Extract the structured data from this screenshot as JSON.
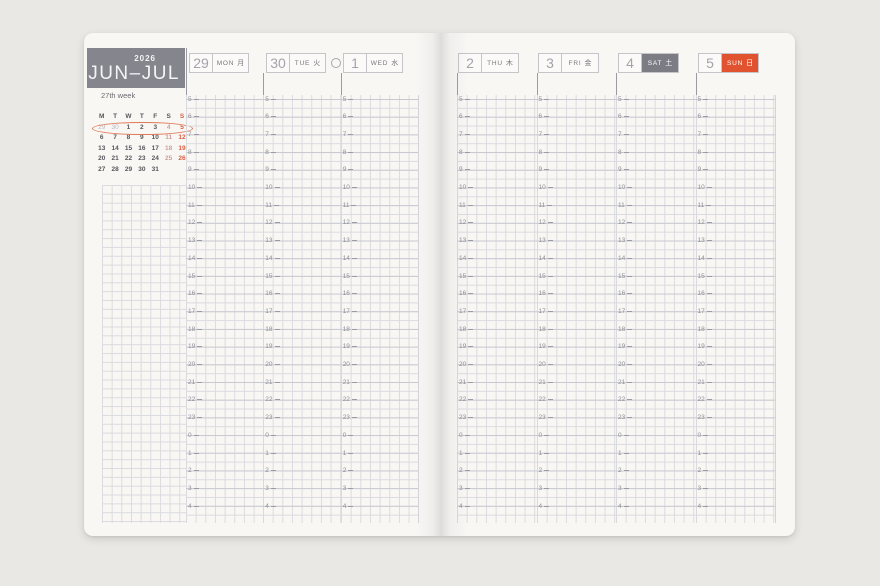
{
  "header": {
    "year": "2026",
    "months": "JUN–JUL",
    "week_label": "27th week"
  },
  "mini_calendar": {
    "day_headers": [
      {
        "d": "M",
        "t": "wd"
      },
      {
        "d": "T",
        "t": "wd"
      },
      {
        "d": "W",
        "t": "wd"
      },
      {
        "d": "T",
        "t": "wd"
      },
      {
        "d": "F",
        "t": "wd"
      },
      {
        "d": "S",
        "t": "wd"
      },
      {
        "d": "S",
        "t": "sun"
      }
    ],
    "rows": [
      [
        {
          "d": "29",
          "t": "out"
        },
        {
          "d": "30",
          "t": "out"
        },
        {
          "d": "1",
          "t": "wd"
        },
        {
          "d": "2",
          "t": "wd"
        },
        {
          "d": "3",
          "t": "wd"
        },
        {
          "d": "4",
          "t": "sat"
        },
        {
          "d": "5",
          "t": "sun"
        }
      ],
      [
        {
          "d": "6",
          "t": "wd"
        },
        {
          "d": "7",
          "t": "wd"
        },
        {
          "d": "8",
          "t": "wd"
        },
        {
          "d": "9",
          "t": "wd"
        },
        {
          "d": "10",
          "t": "wd"
        },
        {
          "d": "11",
          "t": "sat"
        },
        {
          "d": "12",
          "t": "sun"
        }
      ],
      [
        {
          "d": "13",
          "t": "wd"
        },
        {
          "d": "14",
          "t": "wd"
        },
        {
          "d": "15",
          "t": "wd"
        },
        {
          "d": "16",
          "t": "wd"
        },
        {
          "d": "17",
          "t": "wd"
        },
        {
          "d": "18",
          "t": "sat"
        },
        {
          "d": "19",
          "t": "sun"
        }
      ],
      [
        {
          "d": "20",
          "t": "wd"
        },
        {
          "d": "21",
          "t": "wd"
        },
        {
          "d": "22",
          "t": "wd"
        },
        {
          "d": "23",
          "t": "wd"
        },
        {
          "d": "24",
          "t": "wd"
        },
        {
          "d": "25",
          "t": "sat"
        },
        {
          "d": "26",
          "t": "sun"
        }
      ],
      [
        {
          "d": "27",
          "t": "wd"
        },
        {
          "d": "28",
          "t": "wd"
        },
        {
          "d": "29",
          "t": "wd"
        },
        {
          "d": "30",
          "t": "wd"
        },
        {
          "d": "31",
          "t": "wd"
        },
        {
          "d": "",
          "t": "wd"
        },
        {
          "d": "",
          "t": "wd"
        }
      ]
    ],
    "circled_row": 0
  },
  "days": [
    {
      "num": "29",
      "abbr": "MON",
      "kanji": "月",
      "style": "plain",
      "page": "left",
      "moon": false
    },
    {
      "num": "30",
      "abbr": "TUE",
      "kanji": "火",
      "style": "plain",
      "page": "left",
      "moon": true
    },
    {
      "num": "1",
      "abbr": "WED",
      "kanji": "水",
      "style": "plain",
      "page": "left",
      "moon": false
    },
    {
      "num": "2",
      "abbr": "THU",
      "kanji": "木",
      "style": "plain",
      "page": "right",
      "moon": false
    },
    {
      "num": "3",
      "abbr": "FRI",
      "kanji": "金",
      "style": "plain",
      "page": "right",
      "moon": false
    },
    {
      "num": "4",
      "abbr": "SAT",
      "kanji": "土",
      "style": "sat",
      "page": "right",
      "moon": false
    },
    {
      "num": "5",
      "abbr": "SUN",
      "kanji": "日",
      "style": "sun",
      "page": "right",
      "moon": false
    }
  ],
  "hours": [
    "5",
    "6",
    "7",
    "8",
    "9",
    "10",
    "11",
    "12",
    "13",
    "14",
    "15",
    "16",
    "17",
    "18",
    "19",
    "20",
    "21",
    "22",
    "23",
    "0",
    "1",
    "2",
    "3",
    "4"
  ],
  "moon_icon": "full-moon-circle",
  "colors": {
    "accent_red": "#e1532f",
    "sat_gray": "#7c7c84",
    "header_gray": "#85858d",
    "page_bg": "#f8f7f4",
    "grid_line": "#dadbe0"
  }
}
